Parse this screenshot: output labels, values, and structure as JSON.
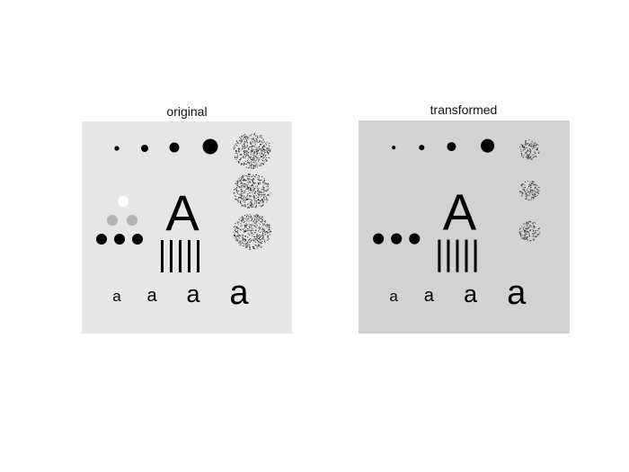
{
  "figure": {
    "panels": [
      {
        "title": "original",
        "background": "#e6e6e6",
        "mid_gray": "#b4b4b4",
        "show_light_dots": true,
        "noise_scale": 1.0
      },
      {
        "title": "transformed",
        "background": "#d2d2d2",
        "mid_gray": "#d2d2d2",
        "show_light_dots": false,
        "noise_scale": 0.55
      }
    ],
    "glyphs": {
      "big_letter": "A",
      "small_letters": [
        "a",
        "a",
        "a",
        "a"
      ]
    },
    "colors": {
      "ink": "#000000",
      "white": "#ffffff",
      "frame": "#ffffff"
    }
  }
}
